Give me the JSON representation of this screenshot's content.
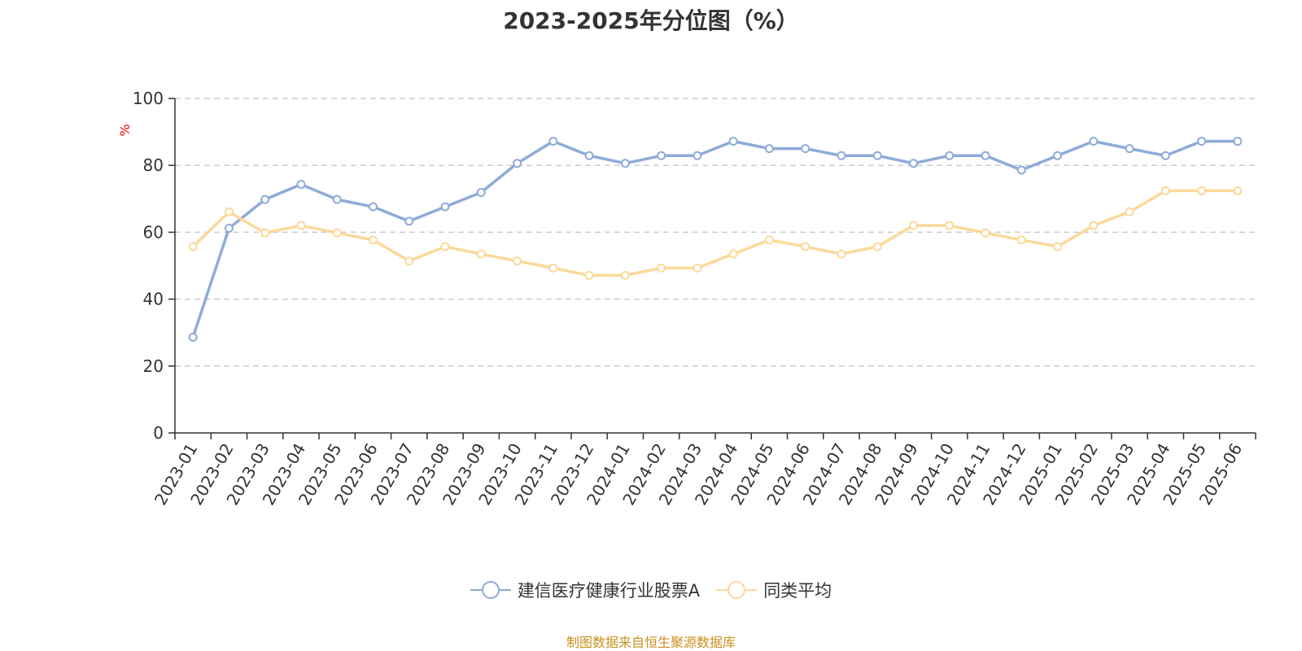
{
  "chart_data": {
    "type": "line",
    "title": "2023-2025年分位图（%）",
    "ylabel": "%",
    "ylim": [
      0,
      100
    ],
    "yticks": [
      0,
      20,
      40,
      60,
      80,
      100
    ],
    "grid": true,
    "legend_position": "bottom",
    "categories": [
      "2023-01",
      "2023-02",
      "2023-03",
      "2023-04",
      "2023-05",
      "2023-06",
      "2023-07",
      "2023-08",
      "2023-09",
      "2023-10",
      "2023-11",
      "2023-12",
      "2024-01",
      "2024-02",
      "2024-03",
      "2024-04",
      "2024-05",
      "2024-06",
      "2024-07",
      "2024-08",
      "2024-09",
      "2024-10",
      "2024-11",
      "2024-12",
      "2025-01",
      "2025-02",
      "2025-03",
      "2025-04",
      "2025-05",
      "2025-06"
    ],
    "series": [
      {
        "name": "建信医疗健康行业股票A",
        "color": "#8eabd8",
        "values": [
          28.6,
          61.2,
          69.8,
          74.3,
          69.8,
          67.6,
          63.3,
          67.6,
          71.9,
          80.6,
          87.2,
          82.9,
          80.6,
          82.9,
          82.9,
          87.2,
          85.0,
          85.0,
          82.9,
          82.9,
          80.6,
          82.9,
          82.9,
          78.6,
          82.9,
          87.2,
          85.0,
          82.9,
          87.2,
          87.2
        ]
      },
      {
        "name": "同类平均",
        "color": "#fbd99a",
        "values": [
          55.7,
          66.1,
          59.8,
          62.0,
          59.8,
          57.7,
          51.4,
          55.7,
          53.5,
          51.4,
          49.3,
          47.1,
          47.1,
          49.3,
          49.3,
          53.5,
          57.7,
          55.7,
          53.5,
          55.7,
          62.0,
          62.0,
          59.8,
          57.7,
          55.7,
          62.0,
          66.1,
          72.4,
          72.4,
          72.4
        ]
      }
    ]
  },
  "source_text": "制图数据来自恒生聚源数据库"
}
